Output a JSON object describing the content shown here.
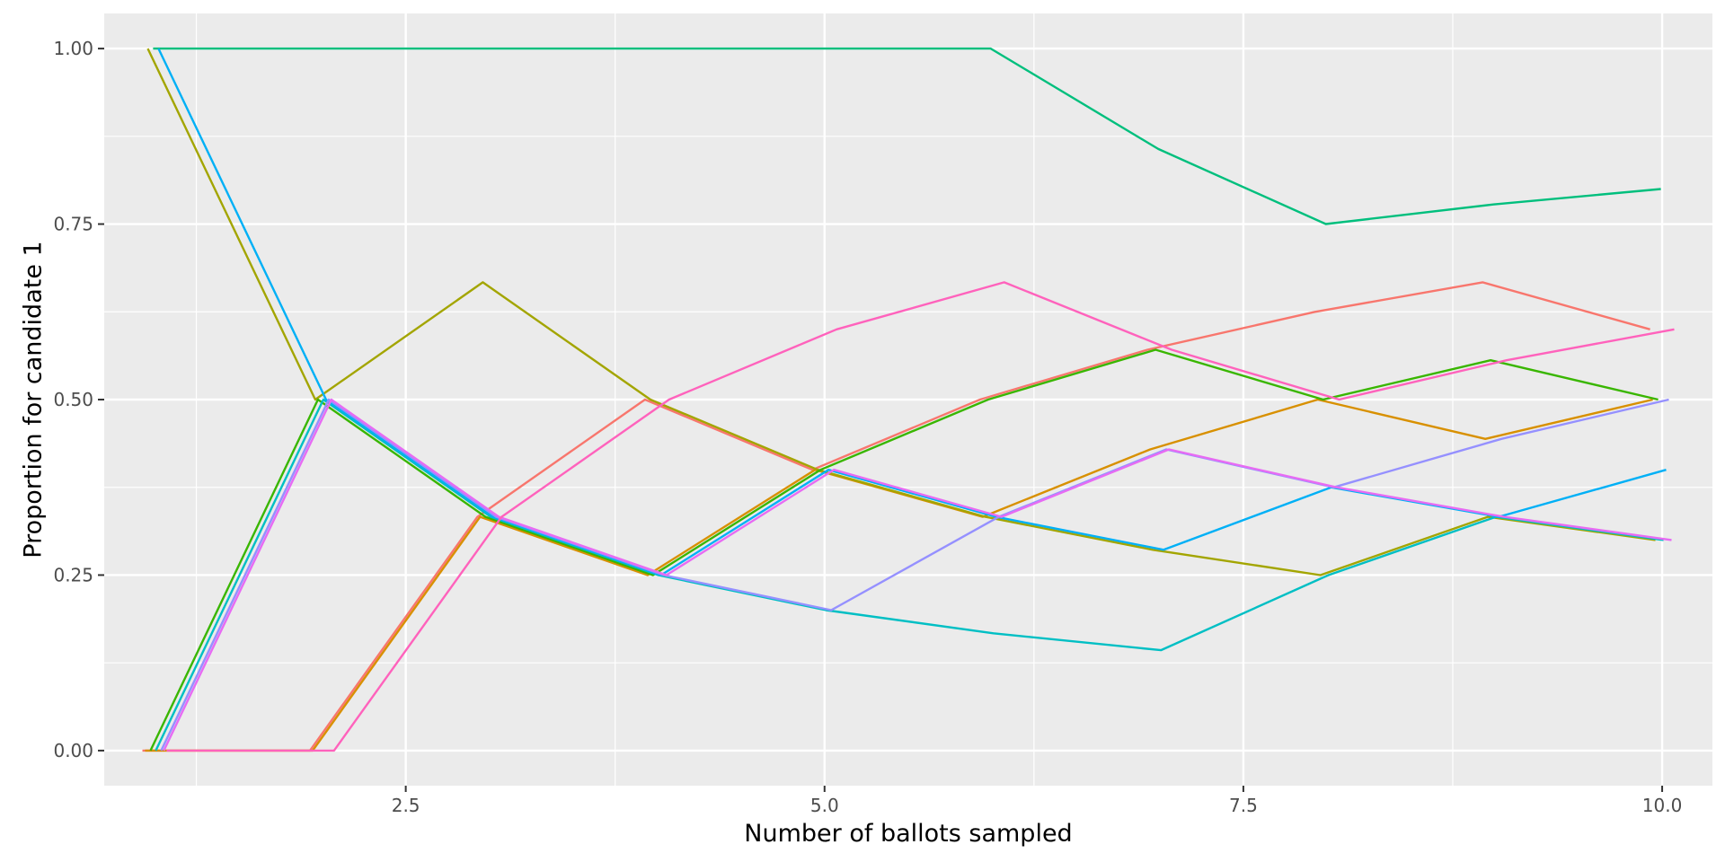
{
  "chart_data": {
    "type": "line",
    "title": "",
    "xlabel": "Number of ballots sampled",
    "ylabel": "Proportion for candidate 1",
    "xlim": [
      0.7,
      10.3
    ],
    "ylim": [
      -0.05,
      1.05
    ],
    "x_ticks": [
      2.5,
      5.0,
      7.5,
      10.0
    ],
    "x_tick_labels": [
      "2.5",
      "5.0",
      "7.5",
      "10.0"
    ],
    "y_ticks": [
      0.0,
      0.25,
      0.5,
      0.75,
      1.0
    ],
    "y_tick_labels": [
      "0.00",
      "0.25",
      "0.50",
      "0.75",
      "1.00"
    ],
    "grid": true,
    "legend": "none",
    "background": "#ebebeb",
    "series": [
      {
        "color": "#F8766D",
        "x": [
          1,
          2,
          3,
          4,
          5,
          6,
          7,
          8,
          9,
          10
        ],
        "y": [
          0,
          0,
          0.333,
          0.5,
          0.4,
          0.5,
          0.571,
          0.625,
          0.667,
          0.6
        ]
      },
      {
        "color": "#D89000",
        "x": [
          1,
          2,
          3,
          4,
          5,
          6,
          7,
          8,
          9,
          10
        ],
        "y": [
          0,
          0,
          0.333,
          0.25,
          0.4,
          0.333,
          0.429,
          0.5,
          0.444,
          0.5
        ]
      },
      {
        "color": "#A3A500",
        "x": [
          1,
          2,
          3,
          4,
          5,
          6,
          7,
          8,
          9,
          10
        ],
        "y": [
          1,
          0.5,
          0.667,
          0.5,
          0.4,
          0.333,
          0.286,
          0.25,
          0.333,
          0.3
        ]
      },
      {
        "color": "#39B600",
        "x": [
          1,
          2,
          3,
          4,
          5,
          6,
          7,
          8,
          9,
          10
        ],
        "y": [
          0,
          0.5,
          0.333,
          0.25,
          0.4,
          0.5,
          0.571,
          0.5,
          0.556,
          0.5
        ]
      },
      {
        "color": "#00BF7D",
        "x": [
          1,
          2,
          3,
          4,
          5,
          6,
          7,
          8,
          9,
          10
        ],
        "y": [
          1,
          1,
          1,
          1,
          1,
          1,
          0.857,
          0.75,
          0.778,
          0.8
        ]
      },
      {
        "color": "#00BFC4",
        "x": [
          1,
          2,
          3,
          4,
          5,
          6,
          7,
          8,
          9,
          10
        ],
        "y": [
          0,
          0.5,
          0.333,
          0.25,
          0.2,
          0.167,
          0.143,
          0.25,
          0.333,
          0.3
        ]
      },
      {
        "color": "#00B0F6",
        "x": [
          1,
          2,
          3,
          4,
          5,
          6,
          7,
          8,
          9,
          10
        ],
        "y": [
          1,
          0.5,
          0.333,
          0.25,
          0.4,
          0.333,
          0.286,
          0.375,
          0.333,
          0.4
        ]
      },
      {
        "color": "#9590FF",
        "x": [
          1,
          2,
          3,
          4,
          5,
          6,
          7,
          8,
          9,
          10
        ],
        "y": [
          0,
          0.5,
          0.333,
          0.25,
          0.2,
          0.333,
          0.429,
          0.375,
          0.444,
          0.5
        ]
      },
      {
        "color": "#E76BF3",
        "x": [
          1,
          2,
          3,
          4,
          5,
          6,
          7,
          8,
          9,
          10
        ],
        "y": [
          0,
          0.5,
          0.333,
          0.25,
          0.4,
          0.333,
          0.429,
          0.375,
          0.333,
          0.3
        ]
      },
      {
        "color": "#FF62BC",
        "x": [
          1,
          2,
          3,
          4,
          5,
          6,
          7,
          8,
          9,
          10
        ],
        "y": [
          0,
          0,
          0.333,
          0.5,
          0.6,
          0.667,
          0.571,
          0.5,
          0.556,
          0.6
        ]
      }
    ]
  }
}
